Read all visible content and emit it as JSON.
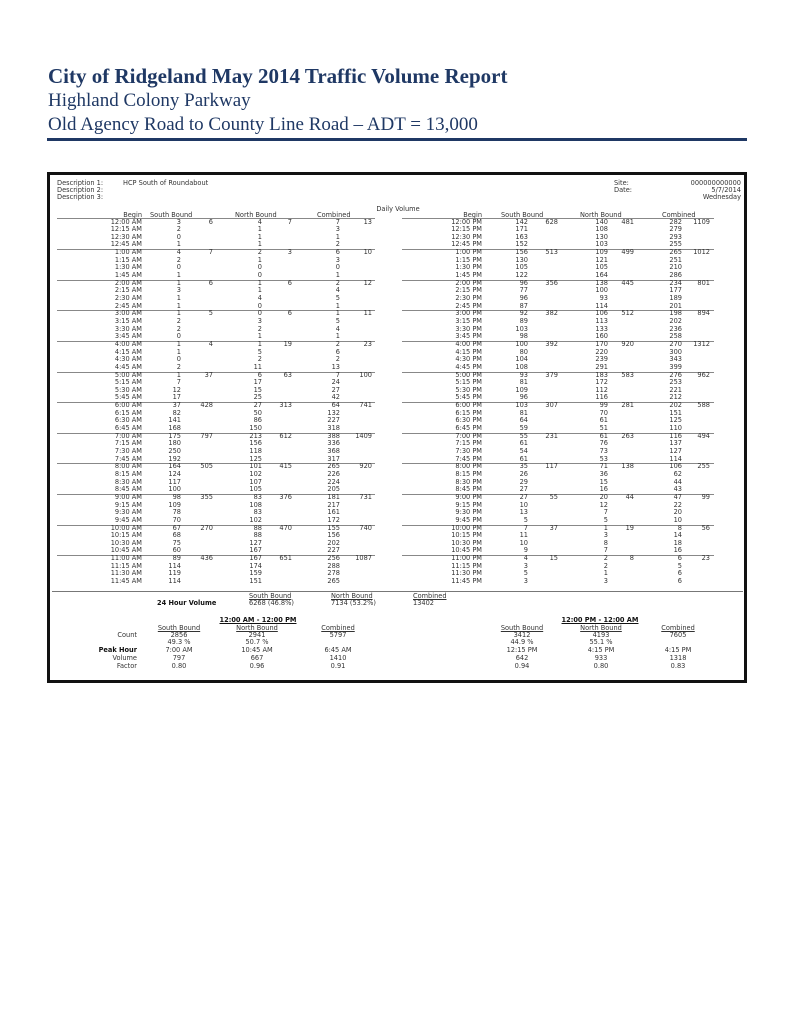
{
  "header": {
    "title": "City of Ridgeland May 2014 Traffic Volume Report",
    "subtitle1": "Highland Colony Parkway",
    "subtitle2": "Old Agency Road to County Line Road – ADT = 13,000",
    "accent_color": "#1f3864"
  },
  "report": {
    "desc_labels": [
      "Description 1:",
      "Description 2:",
      "Description 3:"
    ],
    "desc1_value": "HCP South of Roundabout",
    "site_label": "Site:",
    "site_value": "000000000000",
    "date_label": "Date:",
    "date_value": "5/7/2014",
    "day": "Wednesday",
    "section_title": "Daily Volume",
    "columns": [
      "Begin",
      "South Bound",
      "North Bound",
      "Combined"
    ],
    "am": [
      {
        "rows": [
          [
            "12:00 AM",
            "3",
            "4",
            "7"
          ],
          [
            "12:15 AM",
            "2",
            "1",
            "3"
          ],
          [
            "12:30 AM",
            "0",
            "1",
            "1"
          ],
          [
            "12:45 AM",
            "1",
            "1",
            "2"
          ]
        ],
        "totals": [
          "6",
          "7",
          "13"
        ]
      },
      {
        "rows": [
          [
            "1:00 AM",
            "4",
            "2",
            "6"
          ],
          [
            "1:15 AM",
            "2",
            "1",
            "3"
          ],
          [
            "1:30 AM",
            "0",
            "0",
            "0"
          ],
          [
            "1:45 AM",
            "1",
            "0",
            "1"
          ]
        ],
        "totals": [
          "7",
          "3",
          "10"
        ]
      },
      {
        "rows": [
          [
            "2:00 AM",
            "1",
            "1",
            "2"
          ],
          [
            "2:15 AM",
            "3",
            "1",
            "4"
          ],
          [
            "2:30 AM",
            "1",
            "4",
            "5"
          ],
          [
            "2:45 AM",
            "1",
            "0",
            "1"
          ]
        ],
        "totals": [
          "6",
          "6",
          "12"
        ]
      },
      {
        "rows": [
          [
            "3:00 AM",
            "1",
            "0",
            "1"
          ],
          [
            "3:15 AM",
            "2",
            "3",
            "5"
          ],
          [
            "3:30 AM",
            "2",
            "2",
            "4"
          ],
          [
            "3:45 AM",
            "0",
            "1",
            "1"
          ]
        ],
        "totals": [
          "5",
          "6",
          "11"
        ]
      },
      {
        "rows": [
          [
            "4:00 AM",
            "1",
            "1",
            "2"
          ],
          [
            "4:15 AM",
            "1",
            "5",
            "6"
          ],
          [
            "4:30 AM",
            "0",
            "2",
            "2"
          ],
          [
            "4:45 AM",
            "2",
            "11",
            "13"
          ]
        ],
        "totals": [
          "4",
          "19",
          "23"
        ]
      },
      {
        "rows": [
          [
            "5:00 AM",
            "1",
            "6",
            "7"
          ],
          [
            "5:15 AM",
            "7",
            "17",
            "24"
          ],
          [
            "5:30 AM",
            "12",
            "15",
            "27"
          ],
          [
            "5:45 AM",
            "17",
            "25",
            "42"
          ]
        ],
        "totals": [
          "37",
          "63",
          "100"
        ]
      },
      {
        "rows": [
          [
            "6:00 AM",
            "37",
            "27",
            "64"
          ],
          [
            "6:15 AM",
            "82",
            "50",
            "132"
          ],
          [
            "6:30 AM",
            "141",
            "86",
            "227"
          ],
          [
            "6:45 AM",
            "168",
            "150",
            "318"
          ]
        ],
        "totals": [
          "428",
          "313",
          "741"
        ]
      },
      {
        "rows": [
          [
            "7:00 AM",
            "175",
            "213",
            "388"
          ],
          [
            "7:15 AM",
            "180",
            "156",
            "336"
          ],
          [
            "7:30 AM",
            "250",
            "118",
            "368"
          ],
          [
            "7:45 AM",
            "192",
            "125",
            "317"
          ]
        ],
        "totals": [
          "797",
          "612",
          "1409"
        ]
      },
      {
        "rows": [
          [
            "8:00 AM",
            "164",
            "101",
            "265"
          ],
          [
            "8:15 AM",
            "124",
            "102",
            "226"
          ],
          [
            "8:30 AM",
            "117",
            "107",
            "224"
          ],
          [
            "8:45 AM",
            "100",
            "105",
            "205"
          ]
        ],
        "totals": [
          "505",
          "415",
          "920"
        ]
      },
      {
        "rows": [
          [
            "9:00 AM",
            "98",
            "83",
            "181"
          ],
          [
            "9:15 AM",
            "109",
            "108",
            "217"
          ],
          [
            "9:30 AM",
            "78",
            "83",
            "161"
          ],
          [
            "9:45 AM",
            "70",
            "102",
            "172"
          ]
        ],
        "totals": [
          "355",
          "376",
          "731"
        ]
      },
      {
        "rows": [
          [
            "10:00 AM",
            "67",
            "88",
            "155"
          ],
          [
            "10:15 AM",
            "68",
            "88",
            "156"
          ],
          [
            "10:30 AM",
            "75",
            "127",
            "202"
          ],
          [
            "10:45 AM",
            "60",
            "167",
            "227"
          ]
        ],
        "totals": [
          "270",
          "470",
          "740"
        ]
      },
      {
        "rows": [
          [
            "11:00 AM",
            "89",
            "167",
            "256"
          ],
          [
            "11:15 AM",
            "114",
            "174",
            "288"
          ],
          [
            "11:30 AM",
            "119",
            "159",
            "278"
          ],
          [
            "11:45 AM",
            "114",
            "151",
            "265"
          ]
        ],
        "totals": [
          "436",
          "651",
          "1087"
        ]
      }
    ],
    "pm": [
      {
        "rows": [
          [
            "12:00 PM",
            "142",
            "140",
            "282"
          ],
          [
            "12:15 PM",
            "171",
            "108",
            "279"
          ],
          [
            "12:30 PM",
            "163",
            "130",
            "293"
          ],
          [
            "12:45 PM",
            "152",
            "103",
            "255"
          ]
        ],
        "totals": [
          "628",
          "481",
          "1109"
        ]
      },
      {
        "rows": [
          [
            "1:00 PM",
            "156",
            "109",
            "265"
          ],
          [
            "1:15 PM",
            "130",
            "121",
            "251"
          ],
          [
            "1:30 PM",
            "105",
            "105",
            "210"
          ],
          [
            "1:45 PM",
            "122",
            "164",
            "286"
          ]
        ],
        "totals": [
          "513",
          "499",
          "1012"
        ]
      },
      {
        "rows": [
          [
            "2:00 PM",
            "96",
            "138",
            "234"
          ],
          [
            "2:15 PM",
            "77",
            "100",
            "177"
          ],
          [
            "2:30 PM",
            "96",
            "93",
            "189"
          ],
          [
            "2:45 PM",
            "87",
            "114",
            "201"
          ]
        ],
        "totals": [
          "356",
          "445",
          "801"
        ]
      },
      {
        "rows": [
          [
            "3:00 PM",
            "92",
            "106",
            "198"
          ],
          [
            "3:15 PM",
            "89",
            "113",
            "202"
          ],
          [
            "3:30 PM",
            "103",
            "133",
            "236"
          ],
          [
            "3:45 PM",
            "98",
            "160",
            "258"
          ]
        ],
        "totals": [
          "382",
          "512",
          "894"
        ]
      },
      {
        "rows": [
          [
            "4:00 PM",
            "100",
            "170",
            "270"
          ],
          [
            "4:15 PM",
            "80",
            "220",
            "300"
          ],
          [
            "4:30 PM",
            "104",
            "239",
            "343"
          ],
          [
            "4:45 PM",
            "108",
            "291",
            "399"
          ]
        ],
        "totals": [
          "392",
          "920",
          "1312"
        ]
      },
      {
        "rows": [
          [
            "5:00 PM",
            "93",
            "183",
            "276"
          ],
          [
            "5:15 PM",
            "81",
            "172",
            "253"
          ],
          [
            "5:30 PM",
            "109",
            "112",
            "221"
          ],
          [
            "5:45 PM",
            "96",
            "116",
            "212"
          ]
        ],
        "totals": [
          "379",
          "583",
          "962"
        ]
      },
      {
        "rows": [
          [
            "6:00 PM",
            "103",
            "99",
            "202"
          ],
          [
            "6:15 PM",
            "81",
            "70",
            "151"
          ],
          [
            "6:30 PM",
            "64",
            "61",
            "125"
          ],
          [
            "6:45 PM",
            "59",
            "51",
            "110"
          ]
        ],
        "totals": [
          "307",
          "281",
          "588"
        ]
      },
      {
        "rows": [
          [
            "7:00 PM",
            "55",
            "61",
            "116"
          ],
          [
            "7:15 PM",
            "61",
            "76",
            "137"
          ],
          [
            "7:30 PM",
            "54",
            "73",
            "127"
          ],
          [
            "7:45 PM",
            "61",
            "53",
            "114"
          ]
        ],
        "totals": [
          "231",
          "263",
          "494"
        ]
      },
      {
        "rows": [
          [
            "8:00 PM",
            "35",
            "71",
            "106"
          ],
          [
            "8:15 PM",
            "26",
            "36",
            "62"
          ],
          [
            "8:30 PM",
            "29",
            "15",
            "44"
          ],
          [
            "8:45 PM",
            "27",
            "16",
            "43"
          ]
        ],
        "totals": [
          "117",
          "138",
          "255"
        ]
      },
      {
        "rows": [
          [
            "9:00 PM",
            "27",
            "20",
            "47"
          ],
          [
            "9:15 PM",
            "10",
            "12",
            "22"
          ],
          [
            "9:30 PM",
            "13",
            "7",
            "20"
          ],
          [
            "9:45 PM",
            "5",
            "5",
            "10"
          ]
        ],
        "totals": [
          "55",
          "44",
          "99"
        ]
      },
      {
        "rows": [
          [
            "10:00 PM",
            "7",
            "1",
            "8"
          ],
          [
            "10:15 PM",
            "11",
            "3",
            "14"
          ],
          [
            "10:30 PM",
            "10",
            "8",
            "18"
          ],
          [
            "10:45 PM",
            "9",
            "7",
            "16"
          ]
        ],
        "totals": [
          "37",
          "19",
          "56"
        ]
      },
      {
        "rows": [
          [
            "11:00 PM",
            "4",
            "2",
            "6"
          ],
          [
            "11:15 PM",
            "3",
            "2",
            "5"
          ],
          [
            "11:30 PM",
            "5",
            "1",
            "6"
          ],
          [
            "11:45 PM",
            "3",
            "3",
            "6"
          ]
        ],
        "totals": [
          "15",
          "8",
          "23"
        ]
      }
    ]
  },
  "totals24": {
    "label": "24 Hour Volume",
    "headers": [
      "South Bound",
      "North Bound",
      "Combined"
    ],
    "values": [
      "6268 (46.8%)",
      "7134 (53.2%)",
      "13402"
    ]
  },
  "summary": {
    "labels": {
      "count": "Count",
      "peak": "Peak Hour",
      "volume": "Volume",
      "factor": "Factor"
    },
    "headers": [
      "South Bound",
      "North Bound",
      "Combined"
    ],
    "am": {
      "period": "12:00 AM - 12:00 PM",
      "count": [
        "2856",
        "2941",
        "5797"
      ],
      "pct": [
        "49.3 %",
        "50.7 %"
      ],
      "peak": [
        "7:00 AM",
        "10:45 AM",
        "6:45 AM"
      ],
      "volume": [
        "797",
        "667",
        "1410"
      ],
      "factor": [
        "0.80",
        "0.96",
        "0.91"
      ]
    },
    "pm": {
      "period": "12:00 PM - 12:00 AM",
      "count": [
        "3412",
        "4193",
        "7605"
      ],
      "pct": [
        "44.9 %",
        "55.1 %"
      ],
      "peak": [
        "12:15 PM",
        "4:15 PM",
        "4:15 PM"
      ],
      "volume": [
        "642",
        "933",
        "1318"
      ],
      "factor": [
        "0.94",
        "0.80",
        "0.83"
      ]
    }
  }
}
